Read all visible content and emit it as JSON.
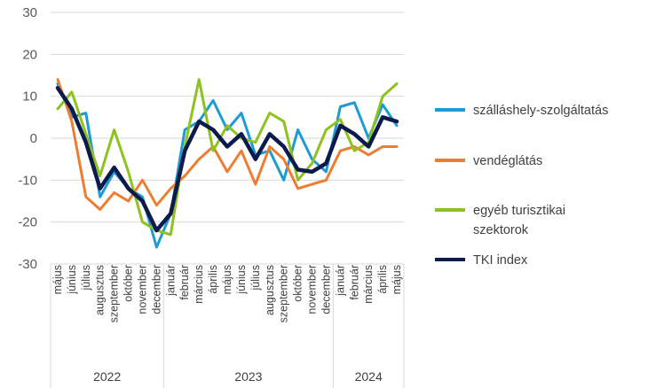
{
  "chart_data": {
    "type": "line",
    "ylim": [
      -30,
      30
    ],
    "yticks": [
      30,
      20,
      10,
      0,
      -10,
      -20,
      -30
    ],
    "grid": "horizontal",
    "legend_position": "right",
    "categories": [
      "május",
      "június",
      "július",
      "augusztus",
      "szeptember",
      "október",
      "november",
      "december",
      "január",
      "február",
      "március",
      "április",
      "május",
      "június",
      "július",
      "augusztus",
      "szeptember",
      "október",
      "november",
      "december",
      "január",
      "február",
      "március",
      "április",
      "május"
    ],
    "years": [
      {
        "label": "2022",
        "start": 0,
        "end": 7
      },
      {
        "label": "2023",
        "start": 8,
        "end": 19
      },
      {
        "label": "2024",
        "start": 20,
        "end": 24
      }
    ],
    "series": [
      {
        "name": "szálláshely-szolgáltatás",
        "color": "#1F9BD4",
        "width": 3,
        "values": [
          13,
          5,
          6,
          -14,
          -8,
          -12,
          -14,
          -26,
          -18,
          2,
          4,
          9,
          2,
          6,
          -4,
          -3,
          -10,
          2,
          -5,
          -8,
          7.5,
          8.5,
          0,
          8,
          3
        ]
      },
      {
        "name": "vendéglátás",
        "color": "#ED7D31",
        "width": 3,
        "values": [
          14,
          4,
          -14,
          -17,
          -13,
          -15,
          -10,
          -16,
          -12,
          -9,
          -5,
          -2,
          -8,
          -3,
          -11,
          -2,
          -5,
          -12,
          -11,
          -10,
          -3,
          -2,
          -4,
          -2,
          -2
        ]
      },
      {
        "name": "egyéb turisztikai szektorok",
        "color": "#8DC21F",
        "width": 3,
        "values": [
          7,
          11,
          1,
          -9,
          2,
          -8,
          -20,
          -22,
          -23,
          -2,
          14,
          -3,
          3,
          0,
          -1,
          6,
          4,
          -10,
          -6,
          2,
          4.5,
          -3,
          -1,
          10,
          13
        ]
      },
      {
        "name": "TKI index",
        "color": "#0D1B4C",
        "width": 4.5,
        "values": [
          12,
          7,
          -1,
          -12,
          -7,
          -12,
          -15,
          -22,
          -18,
          -3,
          4,
          2,
          -2,
          1,
          -5,
          1,
          -2,
          -7.5,
          -8,
          -6,
          3,
          1,
          -2,
          5,
          4
        ]
      }
    ],
    "legend": [
      {
        "name": "szálláshely-szolgáltatás",
        "color": "#1F9BD4"
      },
      {
        "name": "vendéglátás",
        "color": "#ED7D31"
      },
      {
        "name": "egyéb turisztikai",
        "name2": "szektorok",
        "color": "#8DC21F"
      },
      {
        "name": "TKI index",
        "color": "#0D1B4C"
      }
    ]
  }
}
